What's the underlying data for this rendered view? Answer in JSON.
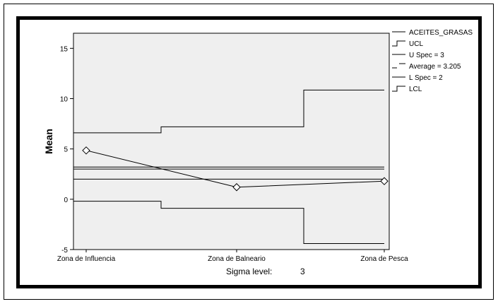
{
  "chart_data": {
    "type": "line",
    "title": "",
    "xlabel": "",
    "ylabel": "Mean",
    "ylim": [
      -5,
      16.5
    ],
    "yticks": [
      -5,
      0,
      5,
      10,
      15
    ],
    "categories": [
      "Zona de Influencia",
      "Zona de Balneario",
      "Zona de Pesca"
    ],
    "series": [
      {
        "name": "ACEITES_GRASAS",
        "values": [
          4.85,
          1.2,
          1.8
        ]
      }
    ],
    "ucl_steps": [
      6.6,
      7.2,
      10.85
    ],
    "lcl_steps": [
      -0.2,
      -0.9,
      -4.4
    ],
    "u_spec": 3,
    "average": 3.205,
    "l_spec": 2,
    "grid": false,
    "legend_position": "right",
    "legend": [
      {
        "label": "ACEITES_GRASAS",
        "style": "solid"
      },
      {
        "label": "UCL",
        "style": "step"
      },
      {
        "label": "U Spec = 3",
        "style": "solid"
      },
      {
        "label": "Average = 3.205",
        "style": "dash"
      },
      {
        "label": "L Spec = 2",
        "style": "solid"
      },
      {
        "label": "LCL",
        "style": "step"
      }
    ],
    "sigma_label": "Sigma level:",
    "sigma_value": "3",
    "colors": {
      "plot_bg": "#efefef",
      "line": "#000000"
    }
  }
}
